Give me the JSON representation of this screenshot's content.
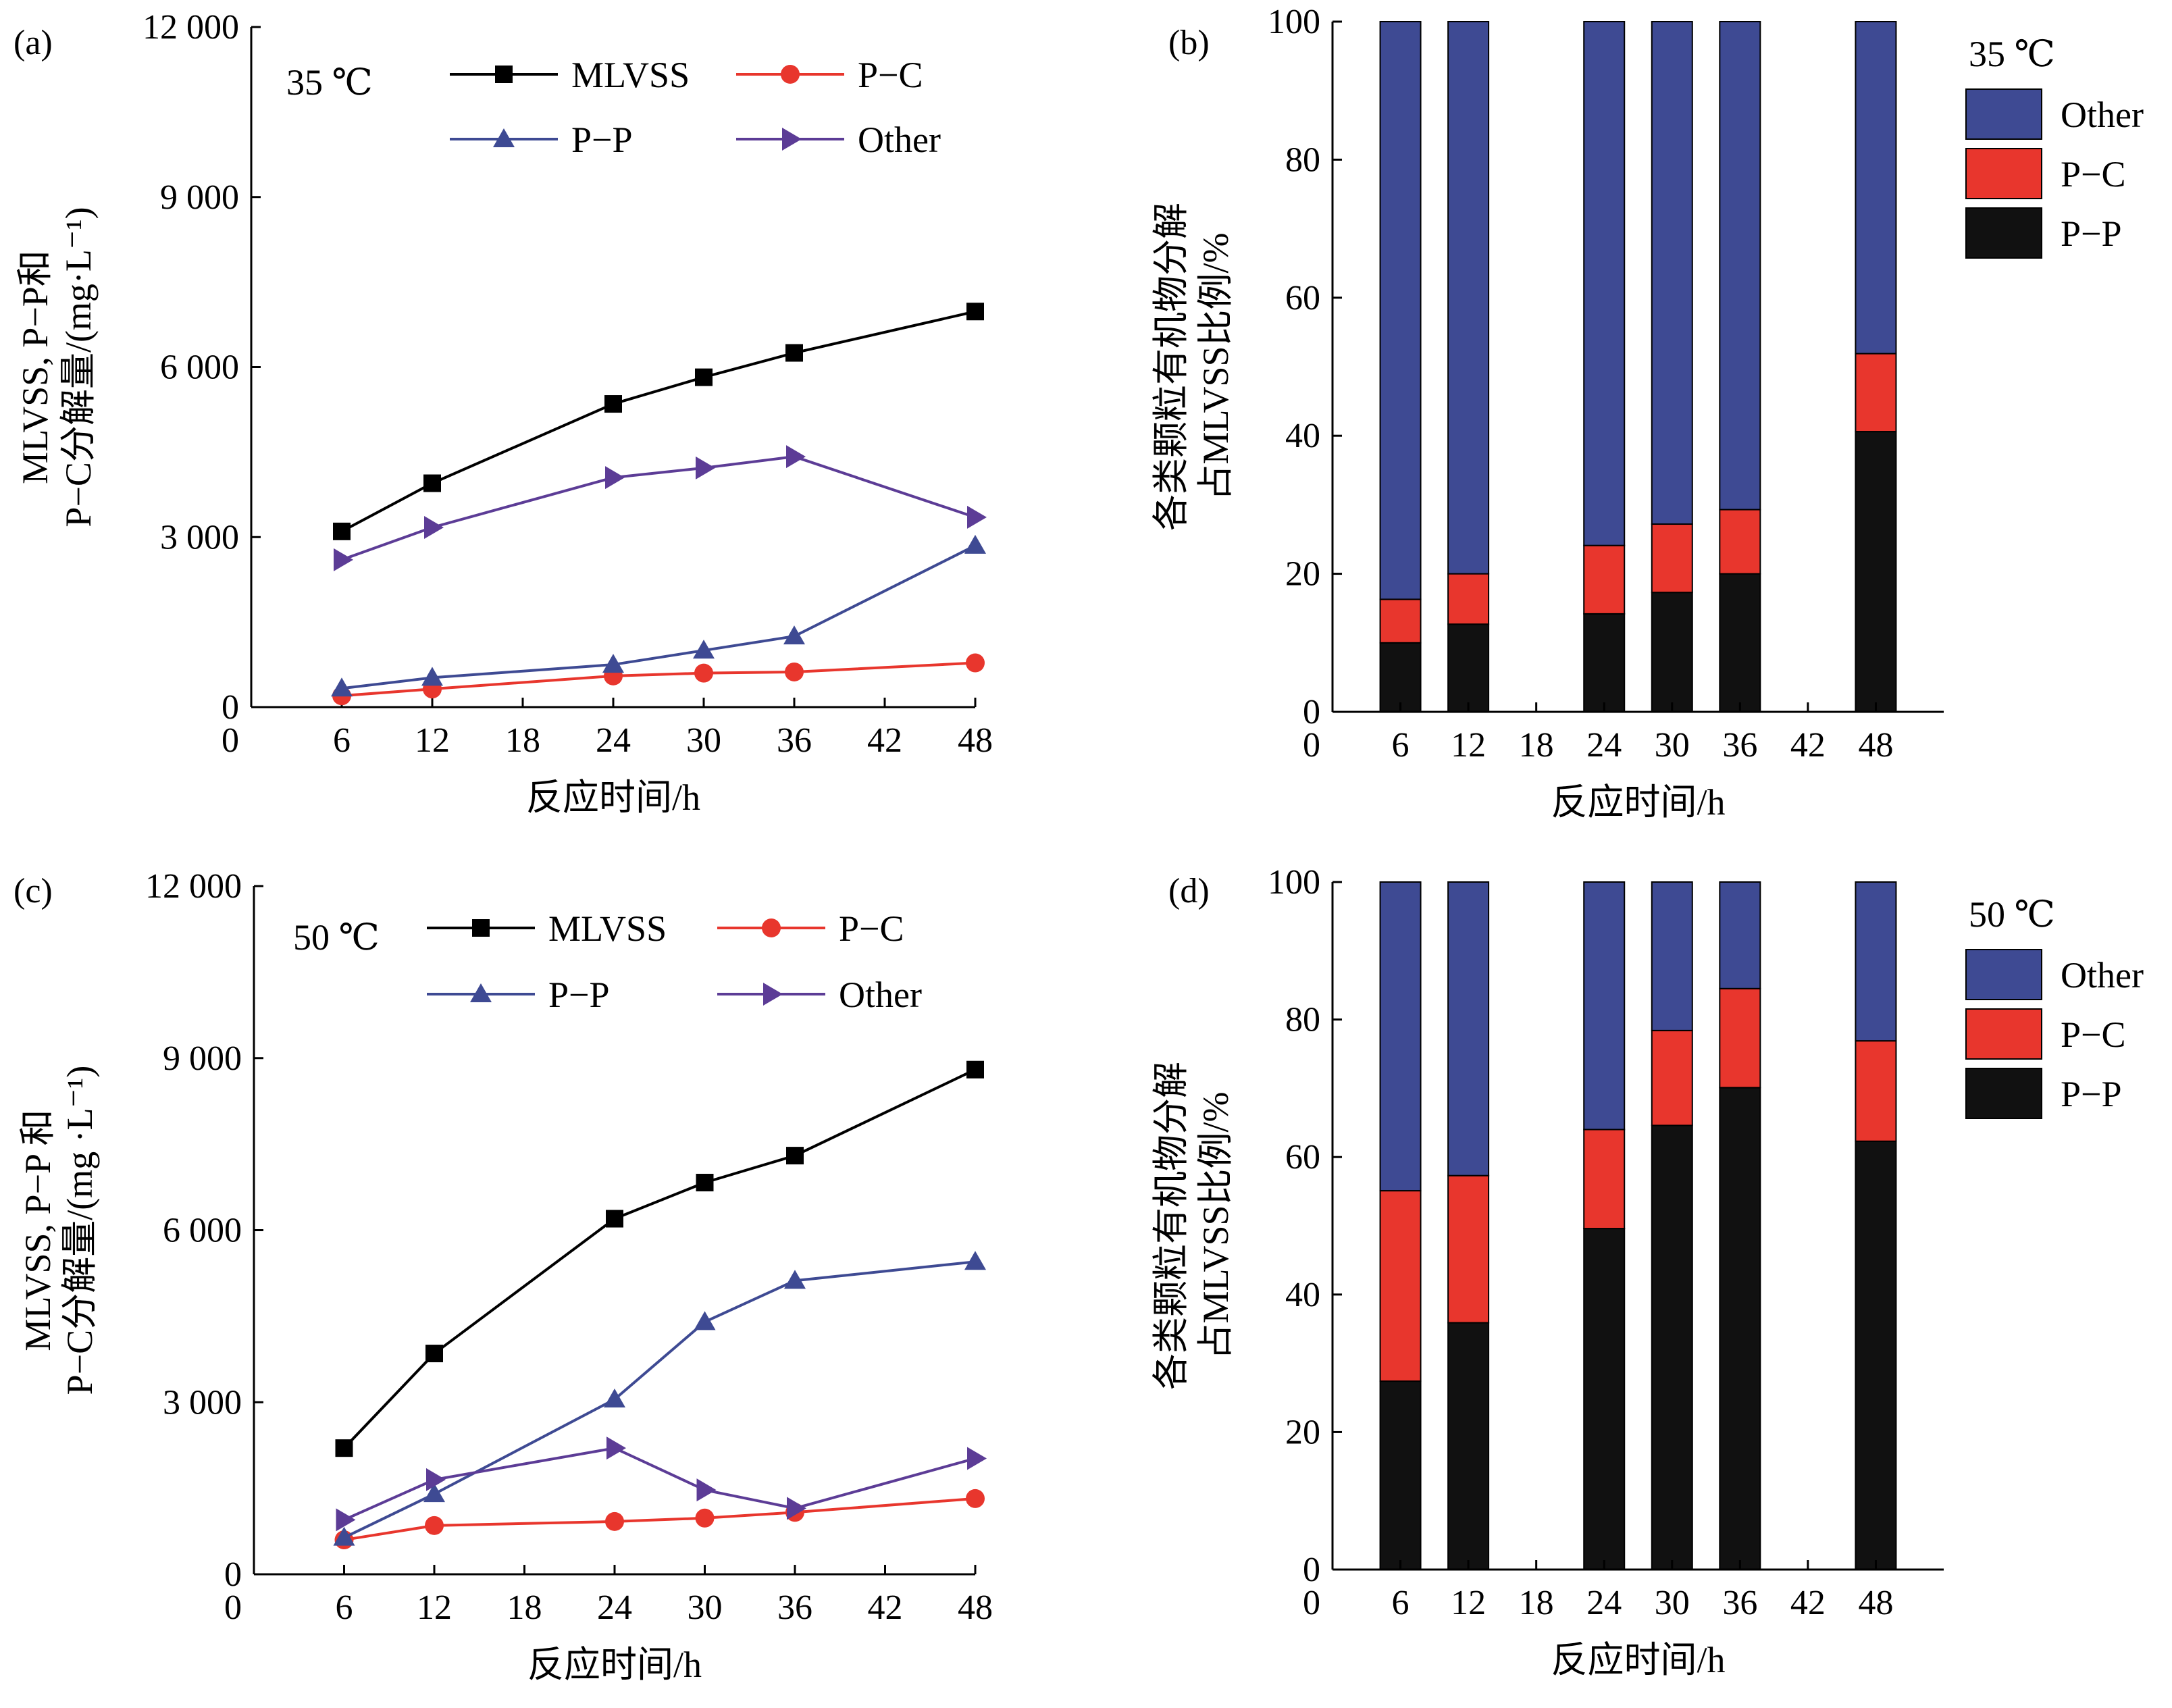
{
  "figure": {
    "colors": {
      "MLVSS": "#000000",
      "P-C": "#e8362d",
      "P-P": "#3e4a93",
      "Other": "#5c3c96",
      "bar_other": "#3e4a93",
      "bar_pc": "#e8362d",
      "bar_pp": "#111111"
    }
  },
  "chart_data": [
    {
      "type": "line",
      "panel": "(a)",
      "temperature": "35 ℃",
      "xlabel": "反应时间/h",
      "ylabel_line1": "MLVSS, P−P和",
      "ylabel_line2": "P−C分解量/(mg·L⁻¹)",
      "x_ticks": [
        "0",
        "6",
        "12",
        "18",
        "24",
        "30",
        "36",
        "42",
        "48"
      ],
      "y_ticks": [
        "0",
        "3 000",
        "6 000",
        "9 000",
        "12 000"
      ],
      "xlim": [
        0,
        48
      ],
      "ylim": [
        0,
        12000
      ],
      "x": [
        6,
        12,
        24,
        30,
        36,
        48
      ],
      "series": [
        {
          "name": "MLVSS",
          "marker": "square",
          "values": [
            3100,
            3950,
            5350,
            5820,
            6250,
            6980
          ]
        },
        {
          "name": "P−C",
          "marker": "circle",
          "values": [
            200,
            320,
            550,
            600,
            620,
            780
          ]
        },
        {
          "name": "P−P",
          "marker": "triangle-up",
          "values": [
            330,
            520,
            750,
            1000,
            1250,
            2850
          ]
        },
        {
          "name": "Other",
          "marker": "triangle-right",
          "values": [
            2600,
            3170,
            4050,
            4220,
            4420,
            3350
          ]
        }
      ]
    },
    {
      "type": "bar",
      "stacked": true,
      "panel": "(b)",
      "temperature": "35 ℃",
      "xlabel": "反应时间/h",
      "ylabel_line1": "各类颗粒有机物分解",
      "ylabel_line2": "占MLVSS比例/%",
      "x_ticks": [
        "0",
        "6",
        "12",
        "18",
        "24",
        "30",
        "36",
        "42",
        "48"
      ],
      "y_ticks": [
        "0",
        "20",
        "40",
        "60",
        "80",
        "100"
      ],
      "xlim": [
        0,
        54
      ],
      "ylim": [
        0,
        100
      ],
      "categories": [
        6,
        12,
        24,
        30,
        36,
        48
      ],
      "series": [
        {
          "name": "P−P",
          "values": [
            10.0,
            12.7,
            14.2,
            17.3,
            20.0,
            40.6
          ]
        },
        {
          "name": "P−C",
          "values": [
            6.3,
            7.3,
            9.9,
            9.9,
            9.3,
            11.3
          ]
        },
        {
          "name": "Other",
          "values": [
            83.7,
            80.0,
            75.9,
            72.8,
            70.7,
            48.1
          ]
        }
      ]
    },
    {
      "type": "line",
      "panel": "(c)",
      "temperature": "50 ℃",
      "xlabel": "反应时间/h",
      "ylabel_line1": "MLVSS, P−P 和",
      "ylabel_line2": "P−C分解量/(mg ·L⁻¹)",
      "x_ticks": [
        "0",
        "6",
        "12",
        "18",
        "24",
        "30",
        "36",
        "42",
        "48"
      ],
      "y_ticks": [
        "0",
        "3 000",
        "6 000",
        "9 000",
        "12 000"
      ],
      "xlim": [
        0,
        48
      ],
      "ylim": [
        0,
        12000
      ],
      "x": [
        6,
        12,
        24,
        30,
        36,
        48
      ],
      "series": [
        {
          "name": "MLVSS",
          "marker": "square",
          "values": [
            2200,
            3850,
            6200,
            6830,
            7300,
            8800
          ]
        },
        {
          "name": "P−C",
          "marker": "circle",
          "values": [
            600,
            850,
            920,
            980,
            1080,
            1320
          ]
        },
        {
          "name": "P−P",
          "marker": "triangle-up",
          "values": [
            640,
            1400,
            3050,
            4400,
            5120,
            5450
          ]
        },
        {
          "name": "Other",
          "marker": "triangle-right",
          "values": [
            950,
            1650,
            2200,
            1470,
            1150,
            2020
          ]
        }
      ]
    },
    {
      "type": "bar",
      "stacked": true,
      "panel": "(d)",
      "temperature": "50 ℃",
      "xlabel": "反应时间/h",
      "ylabel_line1": "各类颗粒有机物分解",
      "ylabel_line2": "占MLVSS比例/%",
      "x_ticks": [
        "0",
        "6",
        "12",
        "18",
        "24",
        "30",
        "36",
        "42",
        "48"
      ],
      "y_ticks": [
        "0",
        "20",
        "40",
        "60",
        "80",
        "100"
      ],
      "xlim": [
        0,
        54
      ],
      "ylim": [
        0,
        100
      ],
      "categories": [
        6,
        12,
        24,
        30,
        36,
        48
      ],
      "series": [
        {
          "name": "P−P",
          "values": [
            27.4,
            35.9,
            49.6,
            64.6,
            70.1,
            62.3
          ]
        },
        {
          "name": "P−C",
          "values": [
            27.7,
            21.4,
            14.4,
            13.8,
            14.4,
            14.6
          ]
        },
        {
          "name": "Other",
          "values": [
            44.9,
            42.7,
            36.0,
            21.6,
            15.5,
            23.1
          ]
        }
      ]
    }
  ]
}
